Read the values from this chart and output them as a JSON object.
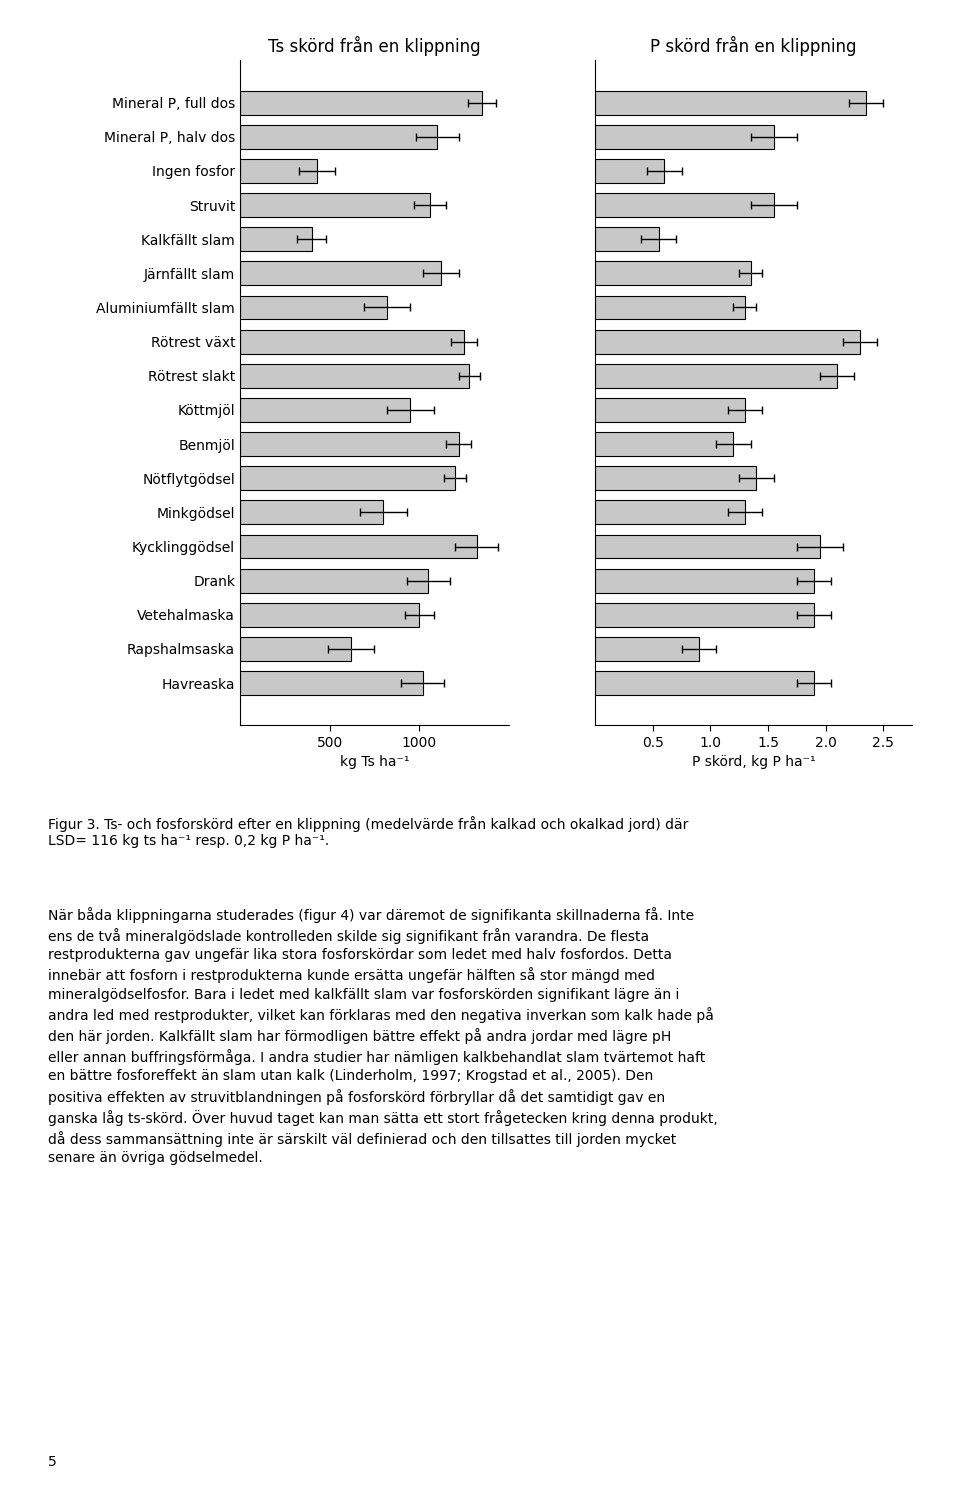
{
  "labels": [
    "Mineral P, full dos",
    "Mineral P, halv dos",
    "Ingen fosfor",
    "Struvit",
    "Kalkfällt slam",
    "Järnfällt slam",
    "Aluminiumfällt slam",
    "Rötrest växt",
    "Rötrest slakt",
    "Köttmjöl",
    "Benmjöl",
    "Nötflytgödsel",
    "Minkgödsel",
    "Kycklinggödsel",
    "Drank",
    "Vetehalmaska",
    "Rapshalmsaska",
    "Havreaska"
  ],
  "ts_values": [
    1350,
    1100,
    430,
    1060,
    400,
    1120,
    820,
    1250,
    1280,
    950,
    1220,
    1200,
    800,
    1320,
    1050,
    1000,
    620,
    1020
  ],
  "ts_errors": [
    80,
    120,
    100,
    90,
    80,
    100,
    130,
    70,
    60,
    130,
    70,
    60,
    130,
    120,
    120,
    80,
    130,
    120
  ],
  "p_values": [
    2.35,
    1.55,
    0.6,
    1.55,
    0.55,
    1.35,
    1.3,
    2.3,
    2.1,
    1.3,
    1.2,
    1.4,
    1.3,
    1.95,
    1.9,
    1.9,
    0.9,
    1.9
  ],
  "p_errors": [
    0.15,
    0.2,
    0.15,
    0.2,
    0.15,
    0.1,
    0.1,
    0.15,
    0.15,
    0.15,
    0.15,
    0.15,
    0.15,
    0.2,
    0.15,
    0.15,
    0.15,
    0.15
  ],
  "ts_title": "Ts skörd från en klippning",
  "p_title": "P skörd från en klippning",
  "ts_xlabel": "kg Ts ha⁻¹",
  "p_xlabel": "P skörd, kg P ha⁻¹",
  "ts_xlim": [
    0,
    1500
  ],
  "ts_xticks": [
    500,
    1000
  ],
  "p_xlim": [
    0,
    2.75
  ],
  "p_xticks": [
    0.5,
    1.0,
    1.5,
    2.0,
    2.5
  ],
  "bar_color": "#c8c8c8",
  "bar_edgecolor": "#000000",
  "figsize": [
    9.6,
    5.5
  ],
  "title_fontsize": 12,
  "label_fontsize": 10,
  "tick_fontsize": 10,
  "figure_caption": "Figur 3. Ts- och fosforskörd efter en klippning (medelvärde från kalkad och okalkad jord) där\nLSD= 116 kg ts ha⁻¹ resp. 0,2 kg P ha⁻¹."
}
